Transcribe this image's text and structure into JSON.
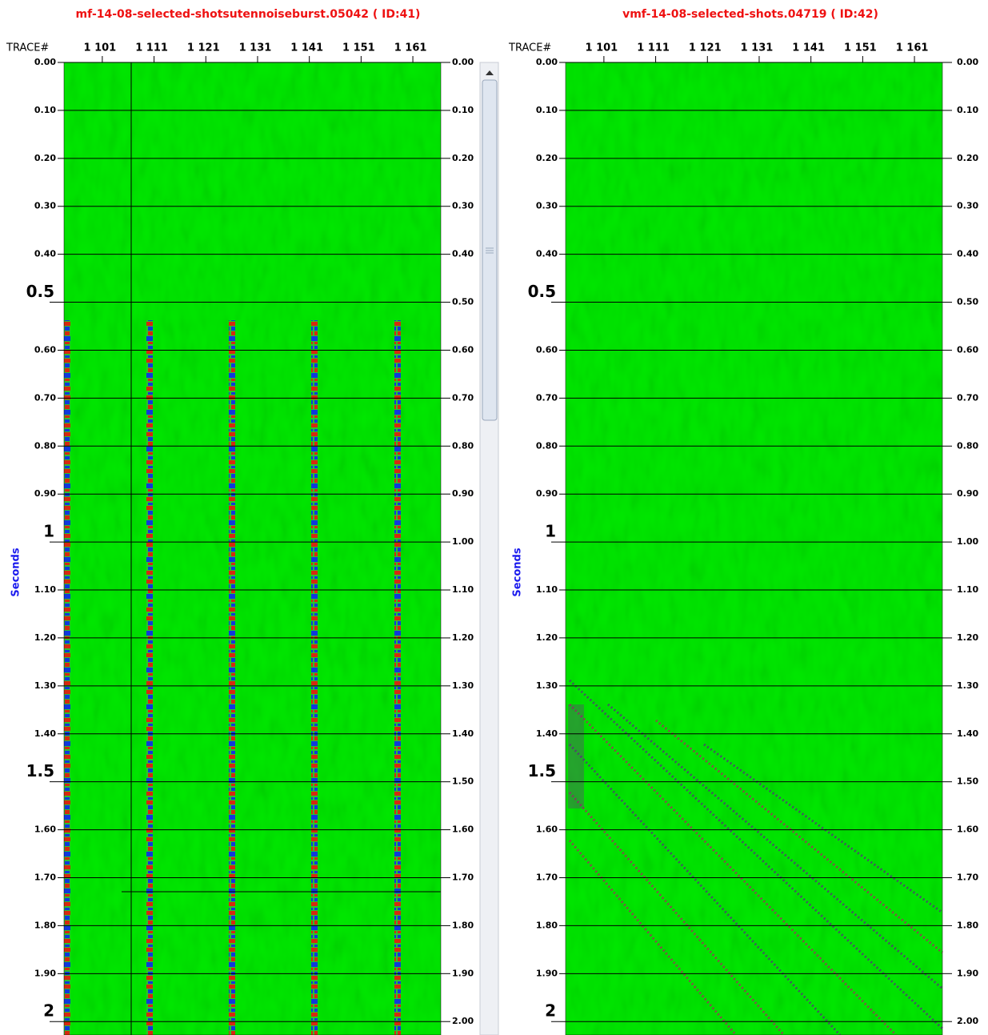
{
  "chart_data": [
    {
      "type": "seismic",
      "title": "mf-14-08-selected-shotsutennoiseburst.05042 ( ID:41)",
      "xlabel": "TRACE#",
      "ylabel": "Seconds",
      "xlim": [
        1093.6,
        1166.4
      ],
      "xticks": [
        {
          "value": 1101,
          "label": "1 101"
        },
        {
          "value": 1111,
          "label": "1 111"
        },
        {
          "value": 1121,
          "label": "1 121"
        },
        {
          "value": 1131,
          "label": "1 131"
        },
        {
          "value": 1141,
          "label": "1 141"
        },
        {
          "value": 1151,
          "label": "1 151"
        },
        {
          "value": 1161,
          "label": "1 161"
        }
      ],
      "ylim": [
        0,
        2.028
      ],
      "yticks": [
        {
          "value": 0,
          "label": "0.00"
        },
        {
          "value": 0.1,
          "label": "0.10"
        },
        {
          "value": 0.2,
          "label": "0.20"
        },
        {
          "value": 0.3,
          "label": "0.30"
        },
        {
          "value": 0.4,
          "label": "0.40"
        },
        0.5,
        {
          "value": 0.6,
          "label": "0.60"
        },
        {
          "value": 0.7,
          "label": "0.70"
        },
        {
          "value": 0.8,
          "label": "0.80"
        },
        {
          "value": 0.9,
          "label": "0.90"
        },
        1,
        {
          "value": 1.1,
          "label": "1.10"
        },
        {
          "value": 1.2,
          "label": "1.20"
        },
        {
          "value": 1.3,
          "label": "1.30"
        },
        {
          "value": 1.4,
          "label": "1.40"
        },
        1.5,
        {
          "value": 1.6,
          "label": "1.60"
        },
        {
          "value": 1.7,
          "label": "1.70"
        },
        {
          "value": 1.8,
          "label": "1.80"
        },
        {
          "value": 1.9,
          "label": "1.90"
        },
        2
      ],
      "y2lim": [
        0,
        2.028
      ],
      "y2ticks": [
        {
          "value": 0,
          "label": "0.00"
        },
        {
          "value": 0.1,
          "label": "0.10"
        },
        {
          "value": 0.2,
          "label": "0.20"
        },
        {
          "value": 0.3,
          "label": "0.30"
        },
        {
          "value": 0.4,
          "label": "0.40"
        },
        {
          "value": 0.5,
          "label": "0.50"
        },
        {
          "value": 0.6,
          "label": "0.60"
        },
        {
          "value": 0.7,
          "label": "0.70"
        },
        {
          "value": 0.8,
          "label": "0.80"
        },
        {
          "value": 0.9,
          "label": "0.90"
        },
        {
          "value": 1,
          "label": "1.00"
        },
        {
          "value": 1.1,
          "label": "1.10"
        },
        {
          "value": 1.2,
          "label": "1.20"
        },
        {
          "value": 1.3,
          "label": "1.30"
        },
        {
          "value": 1.4,
          "label": "1.40"
        },
        {
          "value": 1.5,
          "label": "1.50"
        },
        {
          "value": 1.6,
          "label": "1.60"
        },
        {
          "value": 1.7,
          "label": "1.70"
        },
        {
          "value": 1.8,
          "label": "1.80"
        },
        {
          "value": 1.9,
          "label": "1.90"
        },
        {
          "value": 2,
          "label": "2.00"
        }
      ],
      "grid": true
    },
    {
      "type": "seismic",
      "title": "vmf-14-08-selected-shots.04719 ( ID:42)",
      "xlabel": "TRACE#",
      "ylabel": "Seconds",
      "xlim": [
        1093.6,
        1166.4
      ],
      "xticks": [
        {
          "value": 1101,
          "label": "1 101"
        },
        {
          "value": 1111,
          "label": "1 111"
        },
        {
          "value": 1121,
          "label": "1 121"
        },
        {
          "value": 1131,
          "label": "1 131"
        },
        {
          "value": 1141,
          "label": "1 141"
        },
        {
          "value": 1151,
          "label": "1 151"
        },
        {
          "value": 1161,
          "label": "1 161"
        }
      ],
      "ylim": [
        0,
        2.028
      ],
      "yticks": [
        {
          "value": 0,
          "label": "0.00"
        },
        {
          "value": 0.1,
          "label": "0.10"
        },
        {
          "value": 0.2,
          "label": "0.20"
        },
        {
          "value": 0.3,
          "label": "0.30"
        },
        {
          "value": 0.4,
          "label": "0.40"
        },
        0.5,
        {
          "value": 0.6,
          "label": "0.60"
        },
        {
          "value": 0.7,
          "label": "0.70"
        },
        {
          "value": 0.8,
          "label": "0.80"
        },
        {
          "value": 0.9,
          "label": "0.90"
        },
        1,
        {
          "value": 1.1,
          "label": "1.10"
        },
        {
          "value": 1.2,
          "label": "1.20"
        },
        {
          "value": 1.3,
          "label": "1.30"
        },
        {
          "value": 1.4,
          "label": "1.40"
        },
        1.5,
        {
          "value": 1.6,
          "label": "1.60"
        },
        {
          "value": 1.7,
          "label": "1.70"
        },
        {
          "value": 1.8,
          "label": "1.80"
        },
        {
          "value": 1.9,
          "label": "1.90"
        },
        2
      ],
      "y2lim": [
        0,
        2.028
      ],
      "y2ticks": [
        {
          "value": 0,
          "label": "0.00"
        },
        {
          "value": 0.1,
          "label": "0.10"
        },
        {
          "value": 0.2,
          "label": "0.20"
        },
        {
          "value": 0.3,
          "label": "0.30"
        },
        {
          "value": 0.4,
          "label": "0.40"
        },
        {
          "value": 0.5,
          "label": "0.50"
        },
        {
          "value": 0.6,
          "label": "0.60"
        },
        {
          "value": 0.7,
          "label": "0.70"
        },
        {
          "value": 0.8,
          "label": "0.80"
        },
        {
          "value": 0.9,
          "label": "0.90"
        },
        {
          "value": 1,
          "label": "1.00"
        },
        {
          "value": 1.1,
          "label": "1.10"
        },
        {
          "value": 1.2,
          "label": "1.20"
        },
        {
          "value": 1.3,
          "label": "1.30"
        },
        {
          "value": 1.4,
          "label": "1.40"
        },
        {
          "value": 1.5,
          "label": "1.50"
        },
        {
          "value": 1.6,
          "label": "1.60"
        },
        {
          "value": 1.7,
          "label": "1.70"
        },
        {
          "value": 1.8,
          "label": "1.80"
        },
        {
          "value": 1.9,
          "label": "1.90"
        },
        {
          "value": 2,
          "label": "2.00"
        }
      ],
      "grid": true
    }
  ]
}
